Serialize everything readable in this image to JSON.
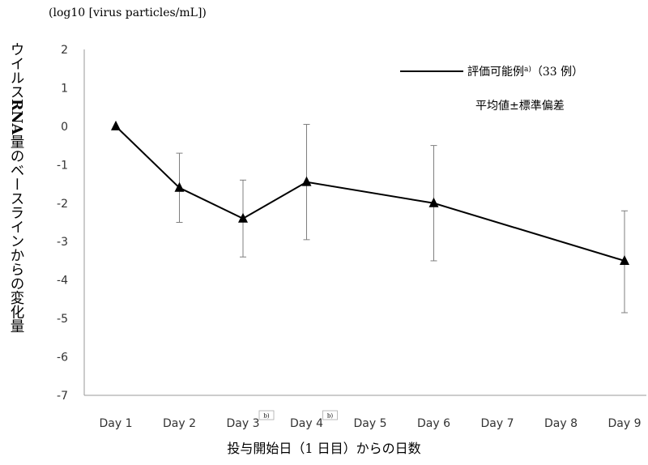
{
  "unit_label": "(log10 [virus particles/mL])",
  "y_axis_label": {
    "part1": "ウイルス",
    "part2": "RNA",
    "part3": "量のベースラインからの変化量"
  },
  "x_axis_title": "投与開始日（1 日目）からの日数",
  "footnote_marker": "b)",
  "legend": {
    "series_text": "評価可能例",
    "series_sup": "a)",
    "series_count": "（33 例）",
    "stat_note": "平均値±標準偏差"
  },
  "chart_data": {
    "type": "line",
    "categories": [
      "Day 1",
      "Day 2",
      "Day 3",
      "Day 4",
      "Day 5",
      "Day 6",
      "Day 7",
      "Day 8",
      "Day 9"
    ],
    "footnoted_categories": [
      "Day 3",
      "Day 4"
    ],
    "ylim": [
      -7,
      2
    ],
    "yticks": [
      2,
      1,
      0,
      -1,
      -2,
      -3,
      -4,
      -5,
      -6,
      -7
    ],
    "series": [
      {
        "name": "評価可能例",
        "points": [
          {
            "x": "Day 1",
            "y": 0.0,
            "sd_low": null,
            "sd_high": null
          },
          {
            "x": "Day 2",
            "y": -1.6,
            "sd_low": -2.5,
            "sd_high": -0.7
          },
          {
            "x": "Day 3",
            "y": -2.4,
            "sd_low": -3.4,
            "sd_high": -1.4
          },
          {
            "x": "Day 4",
            "y": -1.45,
            "sd_low": -2.95,
            "sd_high": 0.05
          },
          {
            "x": "Day 6",
            "y": -2.0,
            "sd_low": -3.5,
            "sd_high": -0.5
          },
          {
            "x": "Day 9",
            "y": -3.5,
            "sd_low": -4.85,
            "sd_high": -2.2
          }
        ]
      }
    ],
    "marker": "triangle",
    "line_color": "#000000",
    "errorbar_color": "#7f7f7f",
    "grid": false
  }
}
